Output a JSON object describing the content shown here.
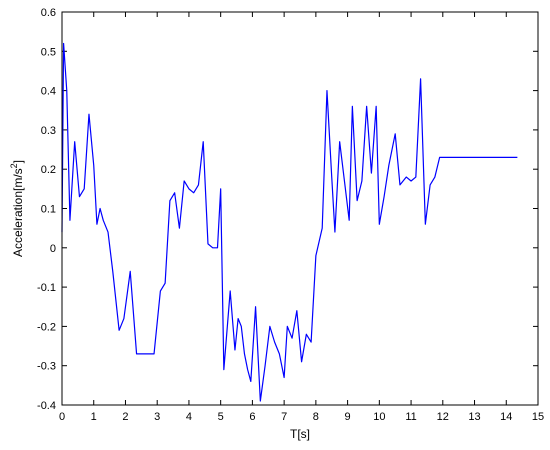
{
  "chart_data": {
    "type": "line",
    "title": "",
    "xlabel": "T[s]",
    "ylabel": "Acceleration[m/s^2]",
    "ylabel_parts": {
      "base": "Acceleration[m/s",
      "sup": "2",
      "close": "]"
    },
    "xlim": [
      0,
      15
    ],
    "ylim": [
      -0.4,
      0.6
    ],
    "xticks": [
      0,
      1,
      2,
      3,
      4,
      5,
      6,
      7,
      8,
      9,
      10,
      11,
      12,
      13,
      14,
      15
    ],
    "yticks": [
      -0.4,
      -0.3,
      -0.2,
      -0.1,
      0,
      0.1,
      0.2,
      0.3,
      0.4,
      0.5,
      0.6
    ],
    "ytick_labels": [
      "-0.4",
      "-0.3",
      "-0.2",
      "-0.1",
      "0",
      "0.1",
      "0.2",
      "0.3",
      "0.4",
      "0.5",
      "0.6"
    ],
    "grid": false,
    "line_color": "#0000ff",
    "series": [
      {
        "x": [
          0.0,
          0.05,
          0.15,
          0.25,
          0.4,
          0.55,
          0.7,
          0.85,
          1.0,
          1.1,
          1.2,
          1.3,
          1.45,
          1.6,
          1.8,
          1.95,
          2.15,
          2.35,
          2.5,
          2.6,
          2.75,
          2.9,
          3.1,
          3.25,
          3.4,
          3.55,
          3.7,
          3.85,
          4.0,
          4.15,
          4.3,
          4.45,
          4.6,
          4.75,
          4.9,
          5.0,
          5.1,
          5.3,
          5.45,
          5.55,
          5.65,
          5.75,
          5.85,
          5.95,
          6.1,
          6.25,
          6.4,
          6.55,
          6.7,
          6.85,
          7.0,
          7.1,
          7.25,
          7.4,
          7.55,
          7.7,
          7.85,
          8.0,
          8.2,
          8.35,
          8.5,
          8.6,
          8.75,
          8.9,
          9.05,
          9.15,
          9.3,
          9.45,
          9.6,
          9.75,
          9.9,
          10.0,
          10.15,
          10.3,
          10.5,
          10.65,
          10.85,
          11.0,
          11.15,
          11.3,
          11.45,
          11.6,
          11.75,
          11.9,
          12.05,
          12.2,
          12.4,
          12.55,
          12.7,
          12.85,
          13.0,
          13.15,
          13.3,
          13.45,
          13.6,
          13.75,
          13.9,
          14.05,
          14.2,
          14.35
        ],
        "y": [
          0.04,
          0.52,
          0.4,
          0.07,
          0.27,
          0.13,
          0.15,
          0.34,
          0.21,
          0.06,
          0.1,
          0.07,
          0.04,
          -0.06,
          -0.21,
          -0.18,
          -0.06,
          -0.27,
          -0.27,
          -0.27,
          -0.27,
          -0.27,
          -0.11,
          -0.09,
          0.12,
          0.14,
          0.05,
          0.17,
          0.15,
          0.14,
          0.16,
          0.27,
          0.01,
          0.0,
          0.0,
          0.15,
          -0.31,
          -0.11,
          -0.26,
          -0.18,
          -0.2,
          -0.27,
          -0.31,
          -0.34,
          -0.15,
          -0.39,
          -0.3,
          -0.2,
          -0.24,
          -0.27,
          -0.33,
          -0.2,
          -0.23,
          -0.16,
          -0.29,
          -0.22,
          -0.24,
          -0.02,
          0.05,
          0.4,
          0.18,
          0.04,
          0.27,
          0.17,
          0.07,
          0.36,
          0.12,
          0.17,
          0.36,
          0.19,
          0.36,
          0.06,
          0.13,
          0.21,
          0.29,
          0.16,
          0.18,
          0.17,
          0.18,
          0.43,
          0.06,
          0.16,
          0.18,
          0.23,
          0.23,
          0.23,
          0.23,
          0.23,
          0.23,
          0.23,
          0.23,
          0.23,
          0.23,
          0.23,
          0.23,
          0.23,
          0.23,
          0.23,
          0.23,
          0.23
        ]
      }
    ]
  }
}
